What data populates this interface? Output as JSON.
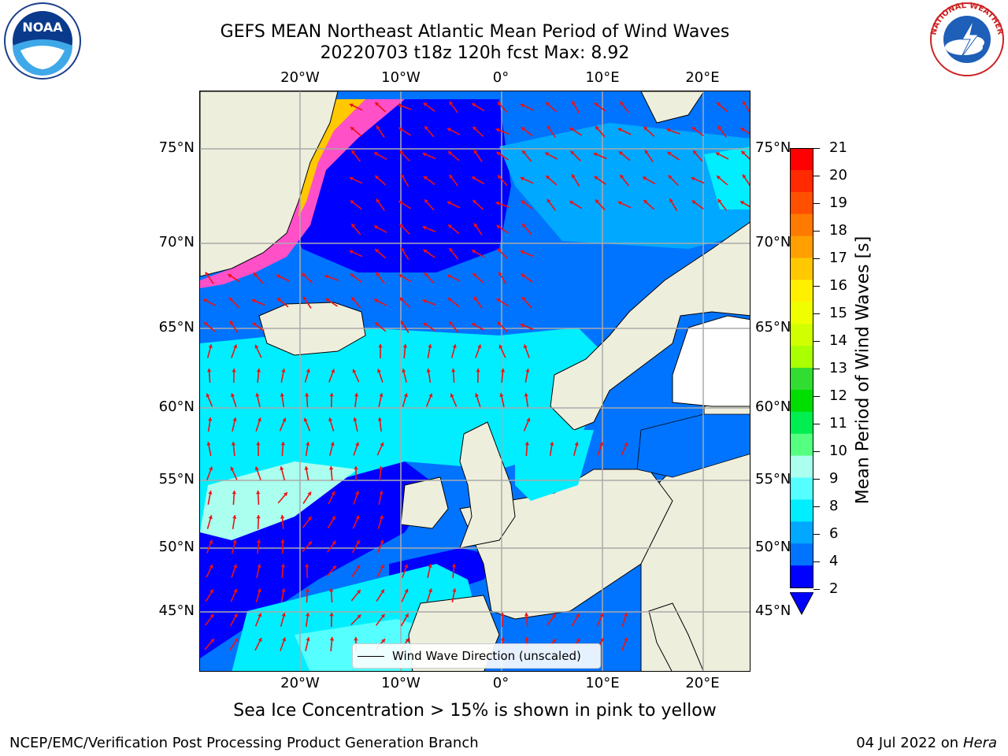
{
  "title_line1": "GEFS MEAN Northeast Atlantic Mean Period of Wind Waves",
  "title_line2": "20220703 t18z 120h fcst   Max: 8.92",
  "top_lon_ticks": [
    "20°W",
    "10°W",
    "0°",
    "10°E",
    "20°E"
  ],
  "bottom_lon_ticks": [
    "20°W",
    "10°W",
    "0°",
    "10°E",
    "20°E"
  ],
  "lat_ticks": [
    "75°N",
    "70°N",
    "65°N",
    "60°N",
    "55°N",
    "50°N",
    "45°N"
  ],
  "legend_label": "Wind Wave Direction (unscaled)",
  "colorbar": {
    "label": "Mean Period of Wind Waves [s]",
    "ticks": [
      "21",
      "20",
      "19",
      "18",
      "17",
      "16",
      "15",
      "14",
      "13",
      "12",
      "11",
      "10",
      "9",
      "8",
      "6",
      "4",
      "2"
    ],
    "colors": [
      "#ff0000",
      "#ff2a00",
      "#ff5000",
      "#ff7a00",
      "#ffa000",
      "#ffc800",
      "#fff000",
      "#f0ff00",
      "#d2ff00",
      "#aaff00",
      "#32dd32",
      "#00dd00",
      "#00ee50",
      "#55ff80",
      "#aaffee",
      "#55ffff",
      "#00eeff",
      "#00a8ff",
      "#0074ff",
      "#0000ff"
    ]
  },
  "note": "Sea Ice Concentration > 15% is shown in pink to yellow",
  "footer_left": "NCEP/EMC/Verification Post Processing Product Generation Branch",
  "footer_right_date": "04 Jul 2022 on ",
  "footer_right_host": "Hera",
  "logos": {
    "noaa_text": "NOAA",
    "nws_text": "NATIONAL WEATHER SERVICE"
  }
}
